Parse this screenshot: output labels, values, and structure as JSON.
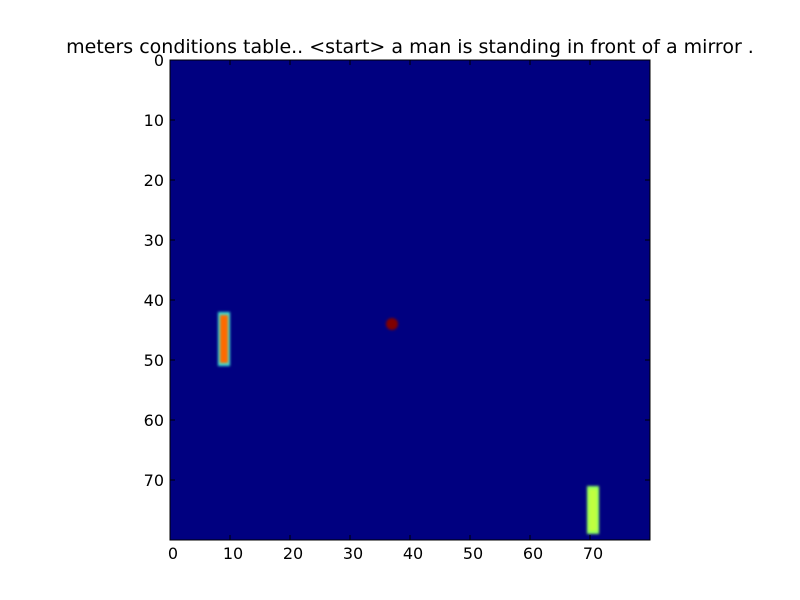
{
  "chart_data": {
    "type": "heatmap",
    "title": "meters conditions table.. <start> a man is standing in front of a mirror .",
    "xlabel": "",
    "ylabel": "",
    "xlim": [
      0,
      80
    ],
    "ylim": [
      80,
      0
    ],
    "x_ticks": [
      0,
      10,
      20,
      30,
      40,
      50,
      60,
      70
    ],
    "y_ticks": [
      0,
      10,
      20,
      30,
      40,
      50,
      60,
      70
    ],
    "grid": false,
    "colormap": "jet",
    "background_color": "#000080",
    "regions": [
      {
        "shape": "bar",
        "x_min": 8,
        "x_max": 10,
        "y_min": 42,
        "y_max": 51,
        "fill": "#ff6a00",
        "edge": "#40e0d0"
      },
      {
        "shape": "dot",
        "x": 37,
        "y": 44,
        "radius": 1,
        "fill": "#800000"
      },
      {
        "shape": "bar",
        "x_min": 69.5,
        "x_max": 71.5,
        "y_min": 71,
        "y_max": 79,
        "fill": "#c0ff40",
        "edge": "#90ff60"
      }
    ]
  }
}
